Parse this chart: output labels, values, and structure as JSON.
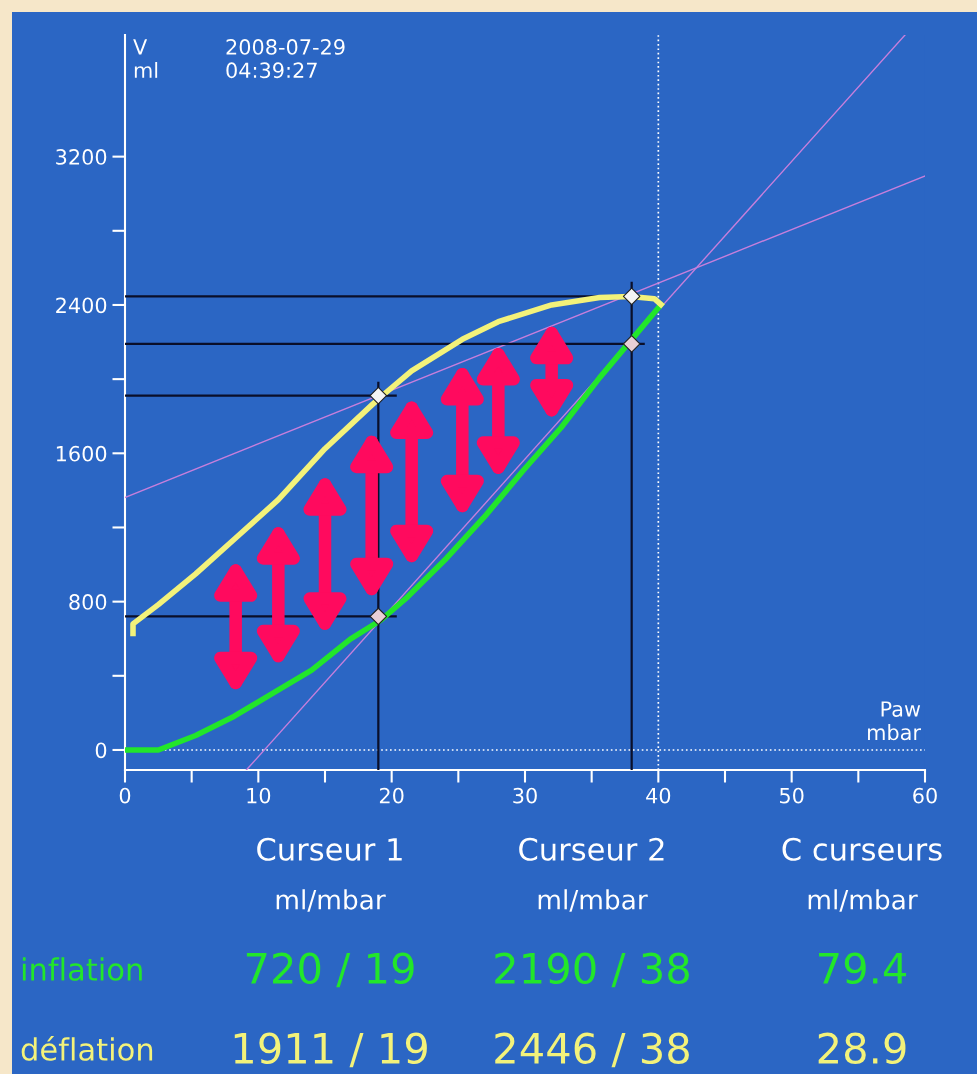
{
  "chart_data": {
    "type": "line",
    "xlabel": "Paw\nmbar",
    "ylabel": "V\nml",
    "xlim": [
      0,
      60
    ],
    "ylim": [
      -108,
      3856
    ],
    "xticks": [
      0,
      {
        "value": 5,
        "label": null
      },
      10,
      {
        "value": 15,
        "label": null
      },
      20,
      {
        "value": 25,
        "label": null
      },
      30,
      {
        "value": 35,
        "label": null
      },
      40,
      {
        "value": 45,
        "label": null
      },
      50,
      {
        "value": 55,
        "label": null
      },
      60
    ],
    "yticks": [
      0,
      {
        "value": 400,
        "label": null
      },
      800,
      {
        "value": 1200,
        "label": null
      },
      1600,
      {
        "value": 2000,
        "label": null
      },
      2400,
      {
        "value": 2800,
        "label": null
      },
      3200
    ],
    "grid": false,
    "legend": false,
    "series": [
      {
        "color": "#c77fdc",
        "x": [
          0,
          60
        ],
        "values": [
          1362,
          3096
        ],
        "line_style": "solid"
      },
      {
        "color": "#c77fdc",
        "x": [
          9.1,
          58.5
        ],
        "values": [
          -108,
          3856
        ],
        "line_style": "solid"
      },
      {
        "color": "#0a0f2a",
        "x": [
          0,
          20.3
        ],
        "values": [
          720,
          720
        ]
      },
      {
        "color": "#0a0f2a",
        "x": [
          0,
          20.3
        ],
        "values": [
          1911,
          1911
        ]
      },
      {
        "color": "#0a0f2a",
        "x": [
          0,
          38.9
        ],
        "values": [
          2190,
          2190
        ]
      },
      {
        "color": "#0a0f2a",
        "x": [
          0,
          38.9
        ],
        "values": [
          2446,
          2446
        ]
      },
      {
        "color": "#0a0f2a",
        "x": [
          19,
          19
        ],
        "values": [
          -108,
          1980
        ]
      },
      {
        "color": "#0a0f2a",
        "x": [
          38,
          38
        ],
        "values": [
          -108,
          2519
        ]
      },
      {
        "color": "#22e62a",
        "x": [
          0,
          2.5,
          5.3,
          8.2,
          11.1,
          14.0,
          16.9,
          19.2,
          21.2,
          24.1,
          27.0,
          29.9,
          32.7,
          35.6,
          37.9,
          40.2
        ],
        "values": [
          0,
          0,
          78,
          182,
          307,
          431,
          598,
          701,
          826,
          1033,
          1261,
          1510,
          1738,
          2008,
          2205,
          2402
        ]
      },
      {
        "color": "#f3f27a",
        "x": [
          0.6,
          0.6,
          2.5,
          5.3,
          8.3,
          11.5,
          15.0,
          18.5,
          19.2,
          21.5,
          25.3,
          28.0,
          32.0,
          35.6,
          37.9,
          39.7,
          40.2
        ],
        "values": [
          628,
          680,
          784,
          950,
          1143,
          1350,
          1625,
          1860,
          1905,
          2045,
          2215,
          2310,
          2400,
          2440,
          2446,
          2434,
          2402
        ]
      },
      {
        "type": "scatter",
        "color": "#e8cfd6",
        "marker": "diamond",
        "x": [
          19,
          38
        ],
        "values": [
          720,
          2190
        ]
      },
      {
        "type": "scatter",
        "color": "#f4f4f4",
        "marker": "diamond",
        "x": [
          19,
          38
        ],
        "values": [
          1911,
          2446
        ]
      }
    ],
    "ref_lines": [
      {
        "axis": "x",
        "value": 40,
        "label": null,
        "color": "#ffffff",
        "line_style": "dotted"
      },
      {
        "axis": "y",
        "value": 0,
        "label": null,
        "color": "#ffffff",
        "line_style": "dotted"
      }
    ],
    "annotations": [
      "2008-07-29\n04:39:27",
      "Curseur 1",
      "Curseur 2",
      "C curseurs",
      "ml/mbar",
      "ml/mbar",
      "ml/mbar",
      "inflation",
      "720 / 19",
      "2190 / 38",
      "79.4",
      "déflation",
      "1911 / 19",
      "2446 / 38",
      "28.9"
    ]
  }
}
